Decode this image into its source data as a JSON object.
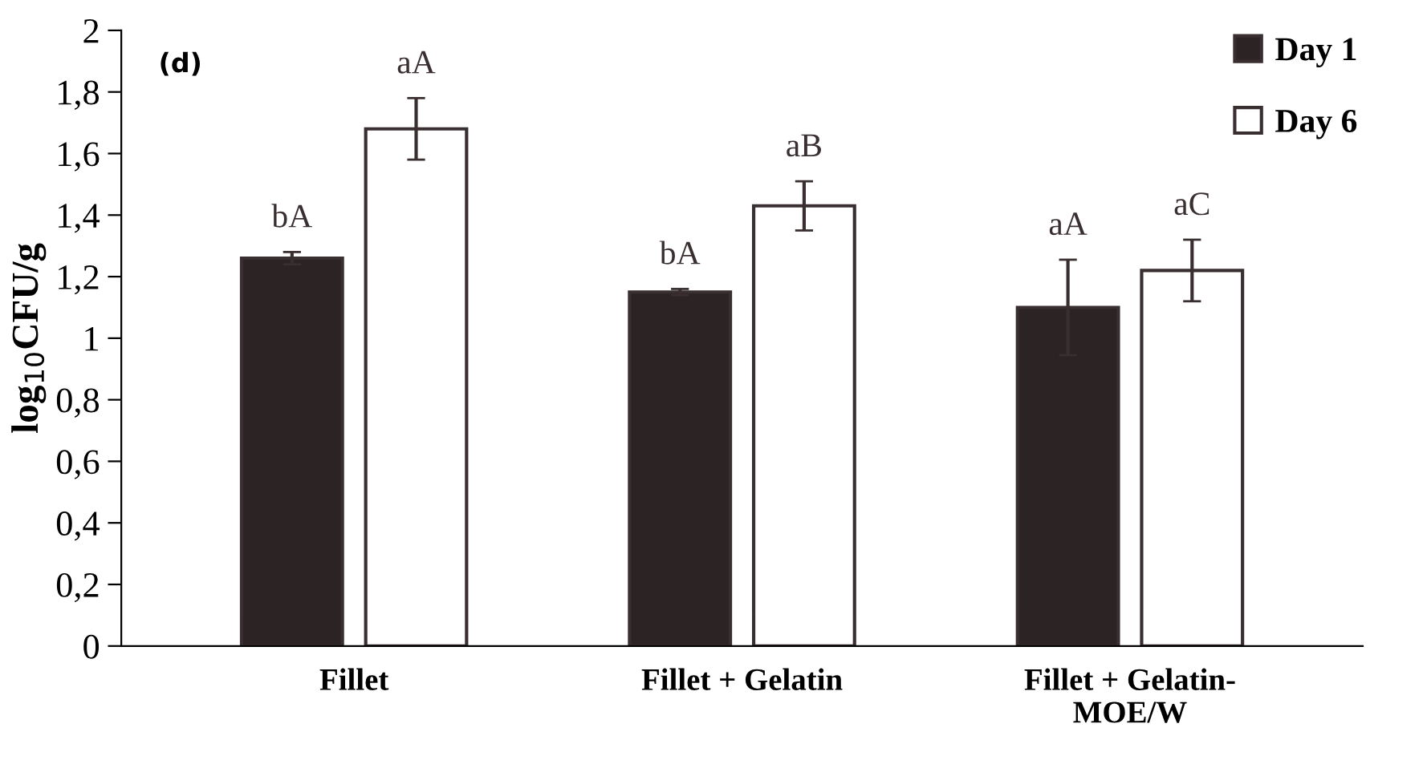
{
  "chart_data": {
    "type": "bar",
    "categories": [
      "Fillet",
      "Fillet + Gelatin",
      "Fillet + Gelatin-\nMOE/W"
    ],
    "series": [
      {
        "name": "Day 1",
        "color": "#2b2324",
        "values": [
          1.26,
          1.15,
          1.1
        ],
        "errors": [
          0.02,
          0.01,
          0.155
        ],
        "value_labels": [
          "bA",
          "bA",
          "aA"
        ]
      },
      {
        "name": "Day 6",
        "color": "#ffffff",
        "values": [
          1.68,
          1.43,
          1.22
        ],
        "errors": [
          0.1,
          0.08,
          0.1
        ],
        "value_labels": [
          "aA",
          "aB",
          "aC"
        ]
      }
    ],
    "ylabel": "log$_{10}$CFU/g",
    "ylim": [
      0,
      2
    ],
    "yticks": [
      0,
      {
        "value": 0.2,
        "label": "0,2"
      },
      {
        "value": 0.4,
        "label": "0,4"
      },
      {
        "value": 0.6,
        "label": "0,6"
      },
      {
        "value": 0.8,
        "label": "0,8"
      },
      1,
      {
        "value": 1.2,
        "label": "1,2"
      },
      {
        "value": 1.4,
        "label": "1,4"
      },
      {
        "value": 1.6,
        "label": "1,6"
      },
      {
        "value": 1.8,
        "label": "1,8"
      },
      2
    ],
    "annotations": [
      "(d)"
    ],
    "legend": "top right",
    "grid": false
  }
}
